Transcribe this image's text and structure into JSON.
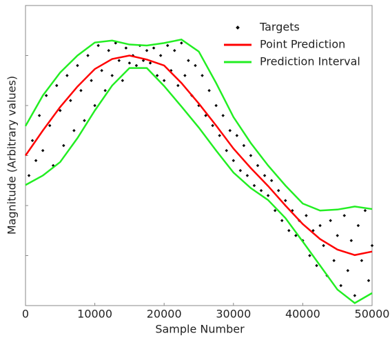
{
  "chart_data": {
    "type": "line",
    "xlabel": "Sample Number",
    "ylabel": "Magnitude  (Arbitrary values)",
    "xlim": [
      0,
      50000
    ],
    "xticks": [
      0,
      10000,
      20000,
      30000,
      40000,
      50000
    ],
    "ylim": [
      0,
      6
    ],
    "yticks": [
      1,
      2,
      3,
      4,
      5
    ],
    "legend": "upper right",
    "x": [
      0,
      2500,
      5000,
      7500,
      10000,
      12500,
      15000,
      17500,
      20000,
      22500,
      25000,
      27500,
      30000,
      32500,
      35000,
      37500,
      40000,
      42500,
      45000,
      47500,
      50000
    ],
    "series": [
      {
        "name": "Targets",
        "color": "#000000",
        "style": "points",
        "x": [
          500,
          1000,
          1500,
          2000,
          2500,
          3000,
          3500,
          4000,
          4500,
          5000,
          5500,
          6000,
          6500,
          7000,
          7500,
          8000,
          8500,
          9000,
          9500,
          10000,
          10500,
          11000,
          11500,
          12000,
          12500,
          13000,
          13500,
          14000,
          14500,
          15000,
          15500,
          16000,
          16500,
          17000,
          17500,
          18000,
          18500,
          19000,
          19500,
          20000,
          20500,
          21000,
          21500,
          22000,
          22500,
          23000,
          23500,
          24000,
          24500,
          25000,
          25500,
          26000,
          26500,
          27000,
          27500,
          28000,
          28500,
          29000,
          29500,
          30000,
          30500,
          31000,
          31500,
          32000,
          32500,
          33000,
          33500,
          34000,
          34500,
          35000,
          35500,
          36000,
          36500,
          37000,
          37500,
          38000,
          38500,
          39000,
          39500,
          40000,
          40500,
          41000,
          41500,
          42000,
          42500,
          43000,
          43500,
          44000,
          44500,
          45000,
          45500,
          46000,
          46500,
          47000,
          47500,
          48000,
          48500,
          49000,
          49500,
          50000
        ],
        "values": [
          2.6,
          3.3,
          2.9,
          3.8,
          3.1,
          4.2,
          3.6,
          2.8,
          4.4,
          3.9,
          3.2,
          4.6,
          4.1,
          3.5,
          4.8,
          4.3,
          3.7,
          5.0,
          4.5,
          4.0,
          5.2,
          4.7,
          4.3,
          5.1,
          4.6,
          5.25,
          4.9,
          4.5,
          5.15,
          4.85,
          5.0,
          4.8,
          5.2,
          4.9,
          5.1,
          4.85,
          5.15,
          4.6,
          5.0,
          4.5,
          5.2,
          4.7,
          5.1,
          4.4,
          5.25,
          4.6,
          4.9,
          4.2,
          4.8,
          4.0,
          4.6,
          3.8,
          4.3,
          3.6,
          4.0,
          3.4,
          3.8,
          3.1,
          3.5,
          2.9,
          3.4,
          2.7,
          3.2,
          2.6,
          3.0,
          2.4,
          2.8,
          2.3,
          2.6,
          2.2,
          2.5,
          1.9,
          2.3,
          1.7,
          2.1,
          1.5,
          1.9,
          1.4,
          1.7,
          1.3,
          1.8,
          1.0,
          1.5,
          0.8,
          1.6,
          1.2,
          0.6,
          1.7,
          0.9,
          1.4,
          0.4,
          1.8,
          0.7,
          1.3,
          0.2,
          1.6,
          0.9,
          1.9,
          0.5,
          1.2
        ]
      },
      {
        "name": "Point Prediction",
        "color": "#ff0000",
        "style": "line",
        "values": [
          3.0,
          3.5,
          3.97,
          4.38,
          4.73,
          4.93,
          5.0,
          4.92,
          4.8,
          4.45,
          4.04,
          3.6,
          3.14,
          2.75,
          2.39,
          2.0,
          1.63,
          1.33,
          1.12,
          1.01,
          1.08
        ]
      },
      {
        "name": "Prediction Interval",
        "color": "#22ee22",
        "style": "band",
        "values": [
          3.59,
          4.2,
          4.66,
          5.0,
          5.26,
          5.3,
          5.22,
          5.2,
          5.25,
          5.32,
          5.08,
          4.45,
          3.77,
          3.25,
          2.8,
          2.4,
          2.04,
          1.9,
          1.92,
          1.98,
          1.93
        ],
        "lower": [
          2.41,
          2.6,
          2.87,
          3.35,
          3.9,
          4.4,
          4.75,
          4.75,
          4.39,
          3.98,
          3.56,
          3.1,
          2.66,
          2.35,
          2.11,
          1.75,
          1.28,
          0.8,
          0.32,
          0.05,
          0.25
        ]
      }
    ]
  }
}
